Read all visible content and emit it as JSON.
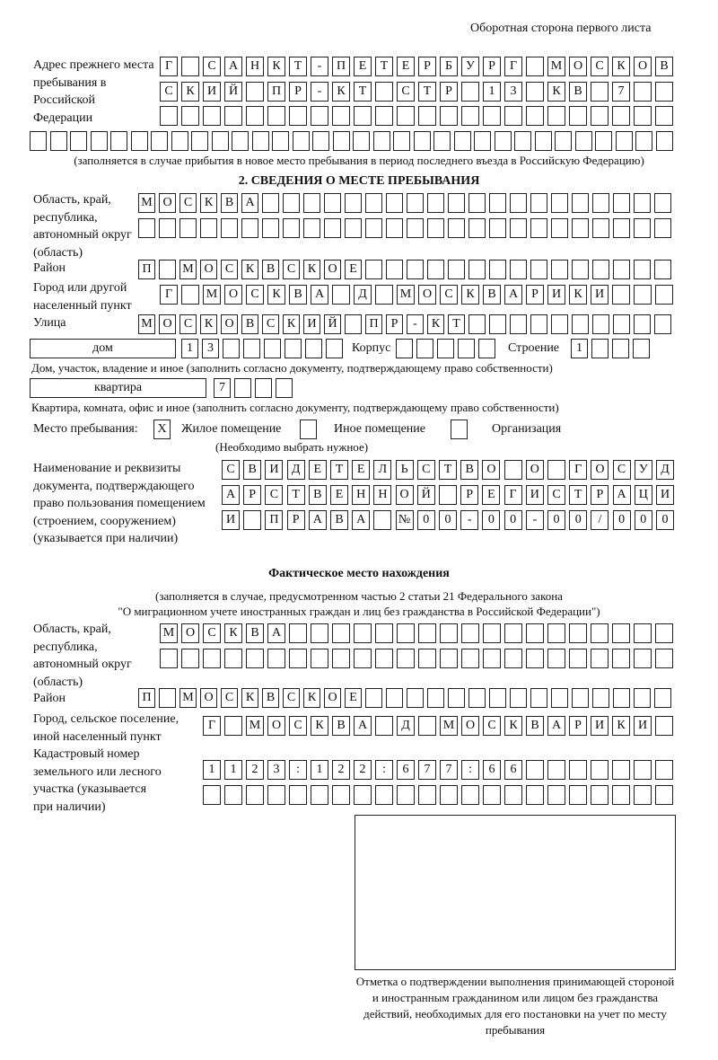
{
  "header": "Оборотная сторона первого листа",
  "prev_address": {
    "label": "Адрес прежнего места пребывания в Российской Федерации",
    "rows": [
      [
        "Г",
        "",
        "С",
        "А",
        "Н",
        "К",
        "Т",
        "-",
        "П",
        "Е",
        "Т",
        "Е",
        "Р",
        "Б",
        "У",
        "Р",
        "Г",
        "",
        "М",
        "О",
        "С",
        "К",
        "О",
        "В"
      ],
      [
        "С",
        "К",
        "И",
        "Й",
        "",
        "П",
        "Р",
        "-",
        "К",
        "Т",
        "",
        "С",
        "Т",
        "Р",
        "",
        "1",
        "3",
        "",
        "К",
        "В",
        "",
        "7",
        "",
        ""
      ],
      [
        "",
        "",
        "",
        "",
        "",
        "",
        "",
        "",
        "",
        "",
        "",
        "",
        "",
        "",
        "",
        "",
        "",
        "",
        "",
        "",
        "",
        "",
        "",
        ""
      ],
      [
        "",
        "",
        "",
        "",
        "",
        "",
        "",
        "",
        "",
        "",
        "",
        "",
        "",
        "",
        "",
        "",
        "",
        "",
        "",
        "",
        "",
        "",
        "",
        "",
        "",
        "",
        "",
        "",
        "",
        "",
        "",
        ""
      ]
    ],
    "note": "(заполняется в случае прибытия в новое место пребывания в период последнего въезда в Российскую Федерацию)"
  },
  "section2": {
    "title": "2. СВЕДЕНИЯ О МЕСТЕ ПРЕБЫВАНИЯ",
    "region_label": "Область, край, республика, автономный округ (область)",
    "region_rows": [
      [
        "М",
        "О",
        "С",
        "К",
        "В",
        "А",
        "",
        "",
        "",
        "",
        "",
        "",
        "",
        "",
        "",
        "",
        "",
        "",
        "",
        "",
        "",
        "",
        "",
        "",
        "",
        ""
      ],
      [
        "",
        "",
        "",
        "",
        "",
        "",
        "",
        "",
        "",
        "",
        "",
        "",
        "",
        "",
        "",
        "",
        "",
        "",
        "",
        "",
        "",
        "",
        "",
        "",
        "",
        ""
      ]
    ],
    "district_label": "Район",
    "district_row": [
      "П",
      "",
      "М",
      "О",
      "С",
      "К",
      "В",
      "С",
      "К",
      "О",
      "Е",
      "",
      "",
      "",
      "",
      "",
      "",
      "",
      "",
      "",
      "",
      "",
      "",
      "",
      "",
      ""
    ],
    "city_label": "Город или другой населенный пункт",
    "city_row": [
      "Г",
      "",
      "М",
      "О",
      "С",
      "К",
      "В",
      "А",
      "",
      "Д",
      "",
      "М",
      "О",
      "С",
      "К",
      "В",
      "А",
      "Р",
      "И",
      "К",
      "И",
      "",
      "",
      ""
    ],
    "street_label": "Улица",
    "street_row": [
      "М",
      "О",
      "С",
      "К",
      "О",
      "В",
      "С",
      "К",
      "И",
      "Й",
      "",
      "П",
      "Р",
      "-",
      "К",
      "Т",
      "",
      "",
      "",
      "",
      "",
      "",
      "",
      "",
      "",
      ""
    ],
    "house_type": "дом",
    "house_cells": [
      "1",
      "3",
      "",
      "",
      "",
      "",
      "",
      ""
    ],
    "korpus_label": "Корпус",
    "korpus_cells": [
      "",
      "",
      "",
      "",
      ""
    ],
    "building_label": "Строение",
    "building_cells": [
      "1",
      "",
      "",
      ""
    ],
    "house_note": "Дом, участок, владение и иное (заполнить согласно документу, подтверждающему право собственности)",
    "flat_type": "квартира",
    "flat_cells": [
      "7",
      "",
      "",
      ""
    ],
    "flat_note": "Квартира, комната, офис и иное (заполнить согласно документу, подтверждающему право собственности)",
    "stay_place_label": "Место пребывания:",
    "stay_options": [
      {
        "label": "Жилое помещение",
        "checked": true,
        "mark": "X"
      },
      {
        "label": "Иное помещение",
        "checked": false,
        "mark": ""
      },
      {
        "label": "Организация",
        "checked": false,
        "mark": ""
      }
    ],
    "stay_note": "(Необходимо выбрать нужное)",
    "doc_label": "Наименование и реквизиты документа, подтверждающего право пользования помещением (строением, сооружением) (указывается при наличии)",
    "doc_rows": [
      [
        "С",
        "В",
        "И",
        "Д",
        "Е",
        "Т",
        "Е",
        "Л",
        "Ь",
        "С",
        "Т",
        "В",
        "О",
        "",
        "О",
        "",
        "Г",
        "О",
        "С",
        "У",
        "Д"
      ],
      [
        "А",
        "Р",
        "С",
        "Т",
        "В",
        "Е",
        "Н",
        "Н",
        "О",
        "Й",
        "",
        "Р",
        "Е",
        "Г",
        "И",
        "С",
        "Т",
        "Р",
        "А",
        "Ц",
        "И"
      ],
      [
        "И",
        "",
        "П",
        "Р",
        "А",
        "В",
        "А",
        "",
        "№",
        "0",
        "0",
        "-",
        "0",
        "0",
        "-",
        "0",
        "0",
        "/",
        "0",
        "0",
        "0"
      ]
    ]
  },
  "actual": {
    "title": "Фактическое место нахождения",
    "subtitle1": "(заполняется в случае, предусмотренном частью 2 статьи 21 Федерального закона",
    "subtitle2": "\"О миграционном учете иностранных граждан и лиц без гражданства в Российской Федерации\")",
    "region_label": "Область, край, республика, автономный округ (область)",
    "region_rows": [
      [
        "М",
        "О",
        "С",
        "К",
        "В",
        "А",
        "",
        "",
        "",
        "",
        "",
        "",
        "",
        "",
        "",
        "",
        "",
        "",
        "",
        "",
        "",
        "",
        "",
        ""
      ],
      [
        "",
        "",
        "",
        "",
        "",
        "",
        "",
        "",
        "",
        "",
        "",
        "",
        "",
        "",
        "",
        "",
        "",
        "",
        "",
        "",
        "",
        "",
        "",
        ""
      ]
    ],
    "district_label": "Район",
    "district_row": [
      "П",
      "",
      "М",
      "О",
      "С",
      "К",
      "В",
      "С",
      "К",
      "О",
      "Е",
      "",
      "",
      "",
      "",
      "",
      "",
      "",
      "",
      "",
      "",
      "",
      "",
      "",
      "",
      ""
    ],
    "city_label": "Город, сельское поселение, иной населенный пункт",
    "city_row": [
      "Г",
      "",
      "М",
      "О",
      "С",
      "К",
      "В",
      "А",
      "",
      "Д",
      "",
      "М",
      "О",
      "С",
      "К",
      "В",
      "А",
      "Р",
      "И",
      "К",
      "И",
      ""
    ],
    "cadastral_label": "Кадастровый номер земельного или лесного участка (указывается при наличии)",
    "cadastral_rows": [
      [
        "1",
        "1",
        "2",
        "3",
        ":",
        "1",
        "2",
        "2",
        ":",
        "6",
        "7",
        "7",
        ":",
        "6",
        "6",
        "",
        "",
        "",
        "",
        "",
        "",
        ""
      ],
      [
        "",
        "",
        "",
        "",
        "",
        "",
        "",
        "",
        "",
        "",
        "",
        "",
        "",
        "",
        "",
        "",
        "",
        "",
        "",
        "",
        "",
        ""
      ]
    ]
  },
  "confirmation": {
    "caption": "Отметка о подтверждении выполнения принимающей стороной и иностранным гражданином или лицом без гражданства действий, необходимых для его постановки на учет по месту пребывания"
  }
}
